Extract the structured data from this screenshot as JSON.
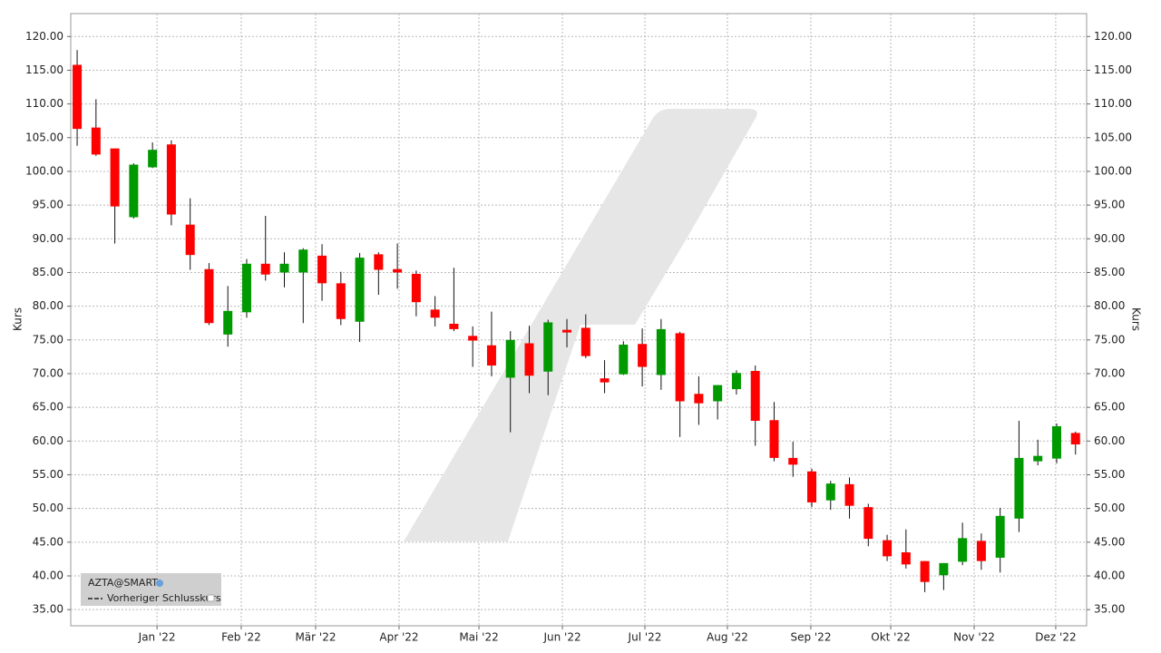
{
  "chart_data": {
    "type": "candlestick",
    "ylabel": "Kurs",
    "y2label": "Kurs",
    "categories": [
      null,
      null,
      null,
      null,
      null,
      null,
      null,
      null,
      null,
      null,
      null,
      null,
      null,
      null,
      null,
      null,
      null,
      null,
      null,
      null,
      null,
      null,
      null,
      null,
      null,
      null,
      null,
      null,
      null,
      null,
      null,
      null,
      null,
      null,
      null,
      null,
      null,
      null,
      null,
      null,
      null,
      null,
      null,
      null,
      null,
      null,
      null,
      null,
      null,
      null,
      null,
      null,
      null,
      null
    ],
    "series": [
      {
        "name": "AZTA@SMART",
        "open": [
          115.8,
          106.5,
          103.4,
          93.2,
          100.6,
          104,
          92.1,
          85.5,
          75.8,
          79.1,
          86.3,
          85,
          85,
          87.5,
          83.4,
          77.7,
          87.7,
          85.5,
          84.8,
          79.5,
          77.4,
          75.6,
          74.2,
          69.4,
          74.5,
          70.3,
          76.5,
          76.8,
          69.3,
          69.9,
          74.4,
          69.8,
          76,
          67,
          65.9,
          67.7,
          70.4,
          63.1,
          57.5,
          55.5,
          51.2,
          53.6,
          50.2,
          45.3,
          43.5,
          42.2,
          40.1,
          42.1,
          45.2,
          42.7,
          48.5,
          57,
          57.4,
          61.2
        ],
        "high": [
          118,
          110.7,
          103.4,
          101.2,
          104.3,
          104.6,
          96,
          86.4,
          83,
          87,
          93.4,
          88,
          88.6,
          89.2,
          85.1,
          87.9,
          88,
          89.3,
          85.3,
          81.5,
          85.7,
          77,
          79.2,
          76.3,
          77.1,
          78,
          78.1,
          78.8,
          72,
          74.8,
          76.7,
          78.1,
          76.2,
          69.6,
          68.3,
          70.5,
          71.2,
          65.8,
          59.9,
          55.9,
          54.1,
          54.6,
          50.7,
          46.1,
          46.9,
          42.2,
          41.9,
          47.9,
          46.3,
          50.1,
          63,
          60.2,
          62.6,
          61.4
        ],
        "low": [
          103.8,
          102.3,
          89.3,
          93,
          100.5,
          92,
          85.4,
          77.2,
          74,
          78.3,
          83.8,
          82.8,
          77.5,
          80.8,
          77.2,
          74.7,
          81.7,
          82.6,
          78.5,
          77,
          76.3,
          71,
          69.6,
          61.3,
          67.1,
          66.8,
          73.9,
          72.3,
          67.1,
          69.8,
          68.1,
          67.6,
          60.6,
          62.4,
          63.2,
          66.9,
          59.3,
          57,
          54.7,
          50.2,
          49.8,
          48.5,
          44.4,
          42.2,
          41.1,
          37.6,
          37.9,
          41.6,
          40.9,
          40.5,
          46.5,
          56.4,
          56.7,
          58
        ],
        "close": [
          106.3,
          102.5,
          94.8,
          101,
          103.2,
          93.6,
          87.6,
          77.5,
          79.3,
          86.3,
          84.7,
          86.3,
          88.4,
          83.4,
          78.1,
          87.2,
          85.4,
          85,
          80.6,
          78.3,
          76.6,
          74.9,
          71.2,
          75,
          69.7,
          77.6,
          76.1,
          72.6,
          68.7,
          74.3,
          71,
          76.6,
          65.9,
          65.6,
          68.3,
          70.1,
          63,
          57.5,
          56.5,
          50.9,
          53.7,
          50.4,
          45.5,
          42.9,
          41.7,
          39.1,
          41.9,
          45.6,
          42.2,
          48.9,
          57.5,
          57.8,
          62.2,
          59.5
        ]
      },
      {
        "name": "Vorheriger Schlusskurs",
        "style": "dashed"
      }
    ],
    "up_color": "#009900",
    "down_color": "#ff0000",
    "ylim": [
      32.6,
      123.4
    ],
    "yticks": [
      {
        "value": 35,
        "label": "35.00"
      },
      {
        "value": 40,
        "label": "40.00"
      },
      {
        "value": 45,
        "label": "45.00"
      },
      {
        "value": 50,
        "label": "50.00"
      },
      {
        "value": 55,
        "label": "55.00"
      },
      {
        "value": 60,
        "label": "60.00"
      },
      {
        "value": 65,
        "label": "65.00"
      },
      {
        "value": 70,
        "label": "70.00"
      },
      {
        "value": 75,
        "label": "75.00"
      },
      {
        "value": 80,
        "label": "80.00"
      },
      {
        "value": 85,
        "label": "85.00"
      },
      {
        "value": 90,
        "label": "90.00"
      },
      {
        "value": 95,
        "label": "95.00"
      },
      {
        "value": 100,
        "label": "100.00"
      },
      {
        "value": 105,
        "label": "105.00"
      },
      {
        "value": 110,
        "label": "110.00"
      },
      {
        "value": 115,
        "label": "115.00"
      },
      {
        "value": 120,
        "label": "120.00"
      }
    ],
    "xlim": [
      -0.34,
      53.59
    ],
    "xticks": [
      {
        "value": 4.24,
        "label": "Jan '22"
      },
      {
        "value": 8.71,
        "label": "Feb '22"
      },
      {
        "value": 12.66,
        "label": "Mär '22"
      },
      {
        "value": 17.09,
        "label": "Apr '22"
      },
      {
        "value": 21.33,
        "label": "Mai '22"
      },
      {
        "value": 25.76,
        "label": "Jun '22"
      },
      {
        "value": 30.14,
        "label": "Jul '22"
      },
      {
        "value": 34.52,
        "label": "Aug '22"
      },
      {
        "value": 38.95,
        "label": "Sep '22"
      },
      {
        "value": 43.19,
        "label": "Okt '22"
      },
      {
        "value": 47.62,
        "label": "Nov '22"
      },
      {
        "value": 51.95,
        "label": "Dez '22"
      }
    ],
    "grid": true,
    "legend": "lower left"
  }
}
